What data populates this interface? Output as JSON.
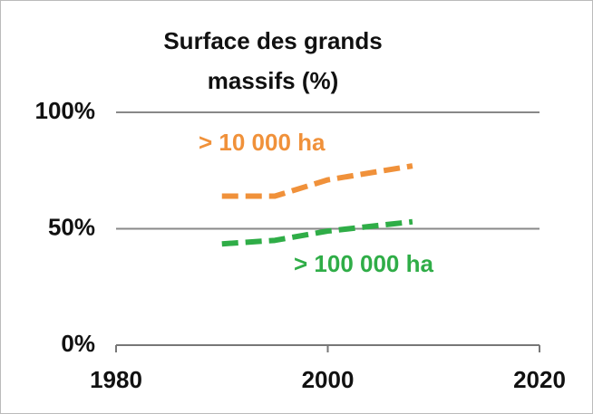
{
  "chart_data": {
    "type": "line",
    "title": "Surface des grands massifs (%)",
    "x": [
      1990,
      1995,
      2000,
      2008
    ],
    "series": [
      {
        "name": "> 10 000 ha",
        "color": "#f0913a",
        "values": [
          64,
          64,
          71,
          77
        ]
      },
      {
        "name": "> 100 000 ha",
        "color": "#2fad47",
        "values": [
          43.5,
          45,
          49,
          53
        ]
      }
    ],
    "xlim": [
      1980,
      2020
    ],
    "xticks": [
      1980,
      2000,
      2020
    ],
    "ylim": [
      0,
      100
    ],
    "yticks": [
      {
        "value": 0,
        "label": "0%"
      },
      {
        "value": 50,
        "label": "50%"
      },
      {
        "value": 100,
        "label": "100%"
      }
    ],
    "grid": true,
    "dashed": true
  }
}
